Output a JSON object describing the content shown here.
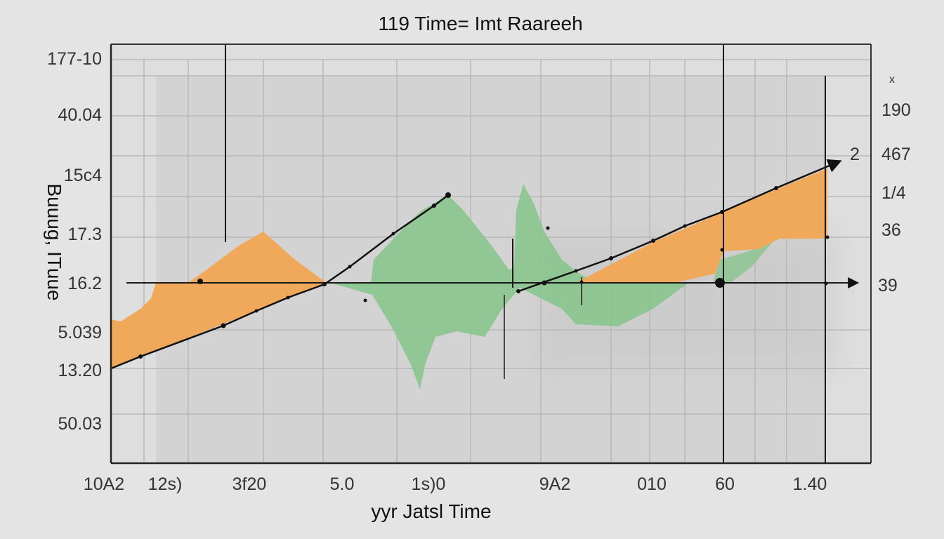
{
  "chart_data": {
    "type": "area",
    "title": "119 Time= Imt Raareeh",
    "xlabel": "yyr Jatsl Time",
    "ylabel": "Buuug, ITuue",
    "grid": true,
    "x_tick_labels": [
      "10A2",
      "12s)",
      "3f20",
      "5.0",
      "1s)0",
      "9A2",
      "010",
      "60",
      "1.40"
    ],
    "y_tick_labels_left": [
      "177-10",
      "40.04",
      "15c4",
      "17.3",
      "16.2",
      "5.039",
      "13.20",
      "50.03"
    ],
    "y_tick_labels_right": [
      "190",
      "467",
      "1/4",
      "36",
      "39"
    ],
    "annotations": [
      "2",
      "x"
    ],
    "colors": {
      "orange_area": "#f0a85a",
      "green_area": "#89c48e",
      "line": "#111111",
      "grid": "#b5b5b5",
      "background": "#e4e4e4"
    },
    "series": []
  }
}
